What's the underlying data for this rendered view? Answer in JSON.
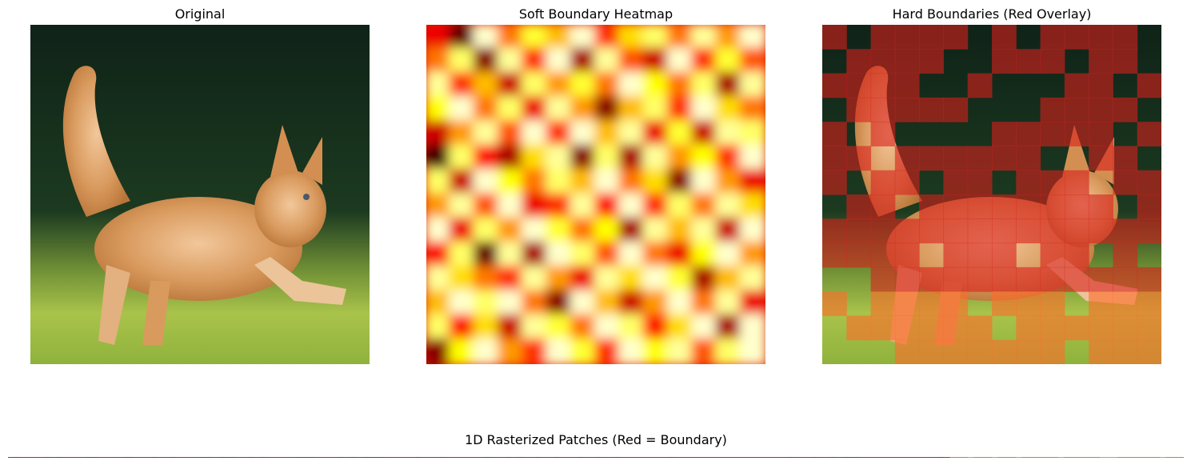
{
  "panels": [
    {
      "title": "Original"
    },
    {
      "title": "Soft Boundary Heatmap"
    },
    {
      "title": "Hard Boundaries (Red Overlay)"
    }
  ],
  "strip": {
    "title": "1D Rasterized Patches (Red = Boundary)"
  },
  "grid": {
    "cols": 14,
    "rows": 14,
    "soft_values": [
      [
        0.35,
        0.15,
        0.95,
        0.55,
        0.8,
        0.65,
        0.95,
        0.45,
        0.7,
        0.85,
        0.55,
        0.9,
        0.6,
        0.95
      ],
      [
        0.55,
        0.85,
        0.2,
        0.9,
        0.45,
        0.95,
        0.25,
        0.9,
        0.5,
        0.3,
        0.95,
        0.45,
        0.8,
        0.5
      ],
      [
        0.9,
        0.45,
        0.65,
        0.3,
        0.85,
        0.6,
        0.8,
        0.55,
        0.95,
        0.75,
        0.55,
        0.85,
        0.25,
        0.9
      ],
      [
        0.75,
        0.95,
        0.55,
        0.85,
        0.35,
        0.9,
        0.6,
        0.2,
        0.65,
        0.85,
        0.45,
        0.95,
        0.7,
        0.55
      ],
      [
        0.3,
        0.6,
        0.9,
        0.5,
        0.95,
        0.45,
        0.95,
        0.65,
        0.9,
        0.35,
        0.8,
        0.3,
        0.9,
        0.85
      ],
      [
        0.1,
        0.85,
        0.4,
        0.25,
        0.7,
        0.9,
        0.2,
        0.85,
        0.25,
        0.9,
        0.6,
        0.75,
        0.45,
        0.95
      ],
      [
        0.85,
        0.3,
        0.95,
        0.75,
        0.55,
        0.85,
        0.65,
        0.95,
        0.55,
        0.7,
        0.2,
        0.95,
        0.6,
        0.35
      ],
      [
        0.6,
        0.9,
        0.5,
        0.95,
        0.35,
        0.45,
        0.9,
        0.4,
        0.95,
        0.45,
        0.85,
        0.55,
        0.9,
        0.7
      ],
      [
        0.95,
        0.35,
        0.85,
        0.6,
        0.95,
        0.8,
        0.55,
        0.75,
        0.25,
        0.9,
        0.65,
        0.9,
        0.3,
        0.95
      ],
      [
        0.4,
        0.85,
        0.15,
        0.9,
        0.25,
        0.95,
        0.85,
        0.5,
        0.95,
        0.55,
        0.35,
        0.75,
        0.95,
        0.6
      ],
      [
        0.9,
        0.7,
        0.55,
        0.45,
        0.9,
        0.6,
        0.35,
        0.9,
        0.7,
        0.95,
        0.8,
        0.25,
        0.65,
        0.9
      ],
      [
        0.65,
        0.95,
        0.85,
        0.95,
        0.55,
        0.2,
        0.95,
        0.65,
        0.3,
        0.6,
        0.95,
        0.55,
        0.9,
        0.35
      ],
      [
        0.85,
        0.4,
        0.7,
        0.3,
        0.9,
        0.8,
        0.55,
        0.95,
        0.85,
        0.4,
        0.7,
        0.95,
        0.25,
        0.95
      ],
      [
        0.2,
        0.75,
        0.95,
        0.6,
        0.45,
        0.95,
        0.8,
        0.45,
        0.95,
        0.75,
        0.9,
        0.5,
        0.85,
        0.95
      ]
    ],
    "hard_mask": [
      [
        1,
        0,
        1,
        1,
        1,
        1,
        0,
        1,
        0,
        1,
        1,
        1,
        1,
        0
      ],
      [
        0,
        1,
        1,
        1,
        1,
        0,
        0,
        1,
        1,
        1,
        0,
        1,
        1,
        0
      ],
      [
        1,
        1,
        1,
        1,
        0,
        0,
        1,
        0,
        0,
        0,
        1,
        1,
        0,
        1
      ],
      [
        0,
        1,
        1,
        1,
        1,
        1,
        0,
        0,
        0,
        1,
        1,
        1,
        1,
        0
      ],
      [
        1,
        0,
        1,
        0,
        0,
        0,
        0,
        1,
        1,
        1,
        1,
        1,
        0,
        1
      ],
      [
        1,
        1,
        0,
        1,
        1,
        1,
        1,
        1,
        1,
        0,
        0,
        1,
        1,
        0
      ],
      [
        1,
        0,
        1,
        1,
        0,
        1,
        1,
        0,
        1,
        1,
        1,
        0,
        1,
        1
      ],
      [
        0,
        1,
        1,
        0,
        1,
        1,
        1,
        1,
        1,
        1,
        1,
        1,
        0,
        1
      ],
      [
        1,
        1,
        1,
        1,
        1,
        1,
        1,
        1,
        1,
        1,
        1,
        1,
        1,
        1
      ],
      [
        1,
        1,
        1,
        1,
        0,
        1,
        1,
        1,
        0,
        1,
        1,
        0,
        1,
        0
      ],
      [
        0,
        0,
        1,
        1,
        1,
        1,
        1,
        1,
        1,
        1,
        1,
        1,
        1,
        1
      ],
      [
        1,
        0,
        1,
        1,
        1,
        1,
        0,
        1,
        1,
        1,
        0,
        1,
        1,
        1
      ],
      [
        0,
        1,
        1,
        1,
        1,
        1,
        1,
        0,
        1,
        1,
        1,
        1,
        1,
        1
      ],
      [
        0,
        0,
        0,
        1,
        1,
        1,
        1,
        1,
        1,
        1,
        0,
        1,
        1,
        1
      ]
    ]
  }
}
